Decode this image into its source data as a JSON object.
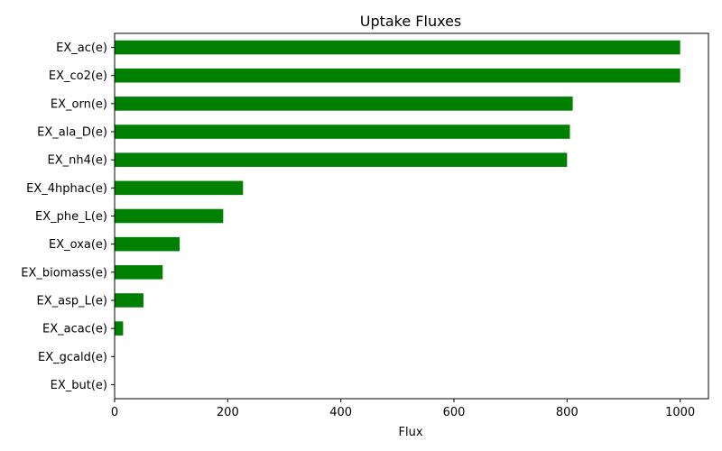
{
  "chart_data": {
    "type": "bar",
    "orientation": "horizontal",
    "title": "Uptake Fluxes",
    "xlabel": "Flux",
    "ylabel": "",
    "categories": [
      "EX_ac(e)",
      "EX_co2(e)",
      "EX_orn(e)",
      "EX_ala_D(e)",
      "EX_nh4(e)",
      "EX_4hphac(e)",
      "EX_phe_L(e)",
      "EX_oxa(e)",
      "EX_biomass(e)",
      "EX_asp_L(e)",
      "EX_acac(e)",
      "EX_gcald(e)",
      "EX_but(e)"
    ],
    "values": [
      1000,
      1000,
      810,
      805,
      800,
      227,
      192,
      115,
      85,
      51,
      15,
      0,
      0
    ],
    "xlim": [
      0,
      1050
    ],
    "xticks": [
      0,
      200,
      400,
      600,
      800,
      1000
    ],
    "bar_color": "#008000",
    "grid": false,
    "legend": false
  }
}
